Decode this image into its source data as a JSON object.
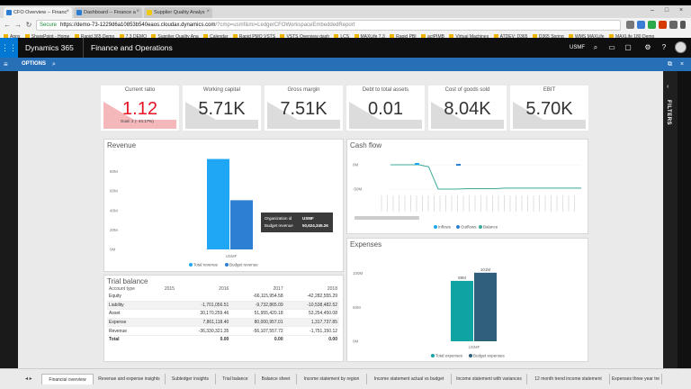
{
  "browser": {
    "tabs": [
      {
        "title": "CFO Overview -- Financ",
        "active": true
      },
      {
        "title": "Dashboard -- Finance a",
        "active": false
      },
      {
        "title": "Supplier Quality Analys",
        "active": false
      }
    ],
    "url": {
      "secure_label": "Secure",
      "host": "https://demo-73-1229d6a10853b540eaos.cloudax.dynamics.com",
      "path": "/?cmp=usmf&mi=LedgerCFOWorkspaceEmbeddedReport"
    },
    "bookmarks": [
      "Apps",
      "SharePoint - Home",
      "Rapid 365 Demo",
      "7.3 DEMO",
      "Supplier Quality Ana",
      "Calendar",
      "Rapid PMO VSTS",
      "VSTS Overview dash",
      "LCS",
      "MAXLife 7.3",
      "Rapid PBI",
      "actPIMB",
      "Virtual Machines",
      "ATDEV: D365",
      "D365 Spring",
      "WMS MAXLife",
      "MAXLife 180 Demo"
    ]
  },
  "app": {
    "brand": "Dynamics 365",
    "product": "Finance and Operations",
    "company": "USMF",
    "options_label": "OPTIONS",
    "filters_label": "FILTERS"
  },
  "kpis": [
    {
      "title": "Current ratio",
      "value": "1.12",
      "goal": "Goal: 2 (- 44.17%)",
      "status_color": "#e81123"
    },
    {
      "title": "Working capital",
      "value": "5.71K"
    },
    {
      "title": "Gross margin",
      "value": "7.51K"
    },
    {
      "title": "Debt to total assets",
      "value": "0.01"
    },
    {
      "title": "Cost of goods sold",
      "value": "8.04K"
    },
    {
      "title": "EBIT",
      "value": "5.70K"
    }
  ],
  "revenue": {
    "title": "Revenue",
    "tooltip": {
      "org_label": "Organization id",
      "org_value": "USMF",
      "budget_label": "Budget revenue",
      "budget_value": "50,624,345.26"
    }
  },
  "cashflow": {
    "title": "Cash flow"
  },
  "expenses": {
    "title": "Expenses"
  },
  "trial_balance": {
    "title": "Trial balance",
    "headers": [
      "Account type",
      "2015",
      "2016",
      "2017",
      "2018"
    ],
    "rows": [
      [
        "Equity",
        "",
        "",
        "-66,115,954.58",
        "-42,282,555.29"
      ],
      [
        "Liability",
        "",
        "-1,701,056.51",
        "-9,732,865.09",
        "-10,538,482.52"
      ],
      [
        "Asset",
        "",
        "30,170,259.46",
        "51,955,420.18",
        "53,254,450.08"
      ],
      [
        "Expense",
        "",
        "7,861,118.40",
        "80,000,957.01",
        "1,317,737.85"
      ],
      [
        "Revenue",
        "",
        "-36,330,321.35",
        "-56,107,557.72",
        "-1,751,150.12"
      ],
      [
        "Total",
        "",
        "0.00",
        "0.00",
        "0.00"
      ]
    ]
  },
  "chart_data": [
    {
      "type": "bar",
      "title": "Revenue",
      "categories": [
        "USMF"
      ],
      "series": [
        {
          "name": "Total revenue",
          "values": [
            93
          ],
          "color": "#1fa7f5"
        },
        {
          "name": "Budget revenue",
          "values": [
            50.6
          ],
          "color": "#2d7fd3"
        }
      ],
      "yticks": [
        "0M",
        "20M",
        "40M",
        "60M",
        "80M"
      ],
      "ylim": [
        0,
        100
      ]
    },
    {
      "type": "line",
      "title": "Cash flow",
      "series": [
        {
          "name": "Inflows",
          "color": "#1fa7f5"
        },
        {
          "name": "Outflows",
          "color": "#2d7fd3"
        },
        {
          "name": "Balance",
          "color": "#3dab9b"
        }
      ],
      "yticks": [
        "0M",
        "-50M"
      ],
      "balance_values": [
        0,
        0,
        0,
        0,
        -4,
        -50,
        -50,
        -50,
        -49,
        -49,
        -49,
        -49,
        -48,
        -48,
        -48,
        -48,
        -48,
        -48,
        -48,
        -48,
        -48
      ]
    },
    {
      "type": "bar",
      "title": "Expenses",
      "categories": [
        "USMF"
      ],
      "series": [
        {
          "name": "Total expenses",
          "values": [
            89
          ],
          "color": "#0fa3a3",
          "label": "89M"
        },
        {
          "name": "Budget expenses",
          "values": [
            101
          ],
          "color": "#2f5f7a",
          "label": "101M"
        }
      ],
      "yticks": [
        "0M",
        "50M",
        "100M"
      ],
      "ylim": [
        0,
        130
      ]
    }
  ],
  "bottom_tabs": [
    {
      "label": "Financial overview",
      "active": true
    },
    {
      "label": "Revenue and expense insights"
    },
    {
      "label": "Subledger insights"
    },
    {
      "label": "Trial balance"
    },
    {
      "label": "Balance sheet"
    },
    {
      "label": "Income statement by region"
    },
    {
      "label": "Income statement actual vs budget"
    },
    {
      "label": "Income statement with variances"
    },
    {
      "label": "12 month trend income statement"
    },
    {
      "label": "Expenses three year tre"
    }
  ]
}
